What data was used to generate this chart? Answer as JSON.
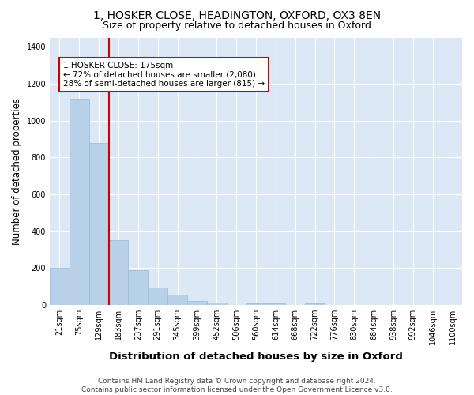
{
  "title": "1, HOSKER CLOSE, HEADINGTON, OXFORD, OX3 8EN",
  "subtitle": "Size of property relative to detached houses in Oxford",
  "xlabel": "Distribution of detached houses by size in Oxford",
  "ylabel": "Number of detached properties",
  "categories": [
    "21sqm",
    "75sqm",
    "129sqm",
    "183sqm",
    "237sqm",
    "291sqm",
    "345sqm",
    "399sqm",
    "452sqm",
    "506sqm",
    "560sqm",
    "614sqm",
    "668sqm",
    "722sqm",
    "776sqm",
    "830sqm",
    "884sqm",
    "938sqm",
    "992sqm",
    "1046sqm",
    "1100sqm"
  ],
  "values": [
    200,
    1120,
    880,
    350,
    190,
    95,
    55,
    20,
    15,
    0,
    10,
    10,
    0,
    10,
    0,
    0,
    0,
    0,
    0,
    0,
    0
  ],
  "bar_color": "#b8d0e8",
  "bar_edge_color": "#9ab8d8",
  "vline_position": 2.5,
  "vline_color": "#cc0000",
  "annotation_text": "1 HOSKER CLOSE: 175sqm\n← 72% of detached houses are smaller (2,080)\n28% of semi-detached houses are larger (815) →",
  "annotation_box_color": "#cc0000",
  "annotation_bg": "#ffffff",
  "ylim": [
    0,
    1450
  ],
  "yticks": [
    0,
    200,
    400,
    600,
    800,
    1000,
    1200,
    1400
  ],
  "fig_background": "#ffffff",
  "plot_bg_color": "#dce8f5",
  "footer": "Contains HM Land Registry data © Crown copyright and database right 2024.\nContains public sector information licensed under the Open Government Licence v3.0.",
  "title_fontsize": 10,
  "subtitle_fontsize": 9,
  "xlabel_fontsize": 9.5,
  "ylabel_fontsize": 8.5,
  "tick_fontsize": 7,
  "footer_fontsize": 6.5
}
